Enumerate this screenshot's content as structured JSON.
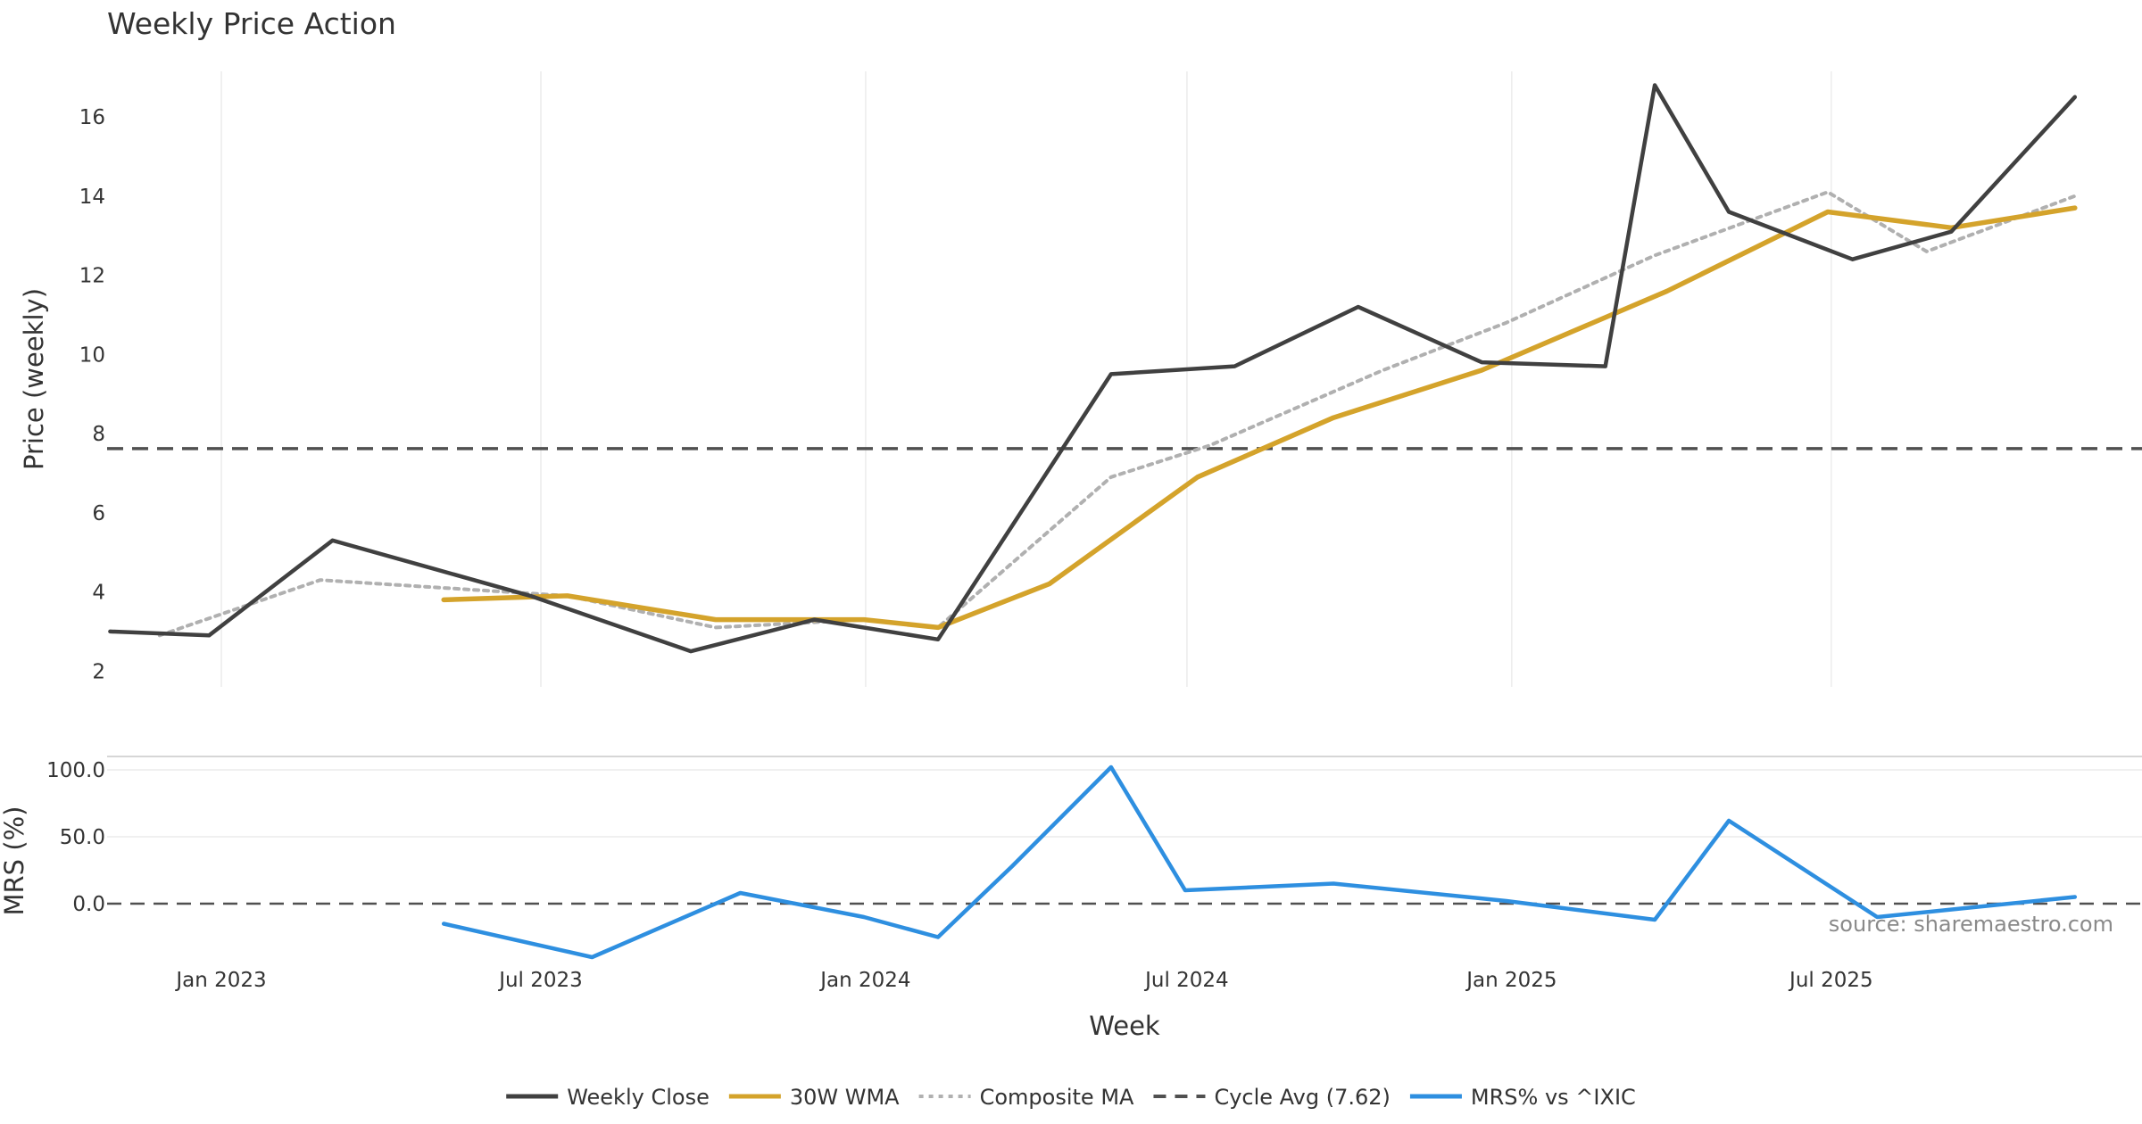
{
  "chart_data": {
    "type": "line",
    "title": "Weekly Price Action",
    "xlabel": "Week",
    "source": "source: sharemaestro.com",
    "x_ticks": [
      "Jan 2023",
      "Jul 2023",
      "Jan 2024",
      "Jul 2024",
      "Jan 2025",
      "Jul 2025"
    ],
    "price_panel": {
      "ylabel": "Price (weekly)",
      "ylim": [
        1.6,
        17.6
      ],
      "yticks": [
        "2",
        "4",
        "6",
        "8",
        "10",
        "12",
        "14",
        "16"
      ],
      "grid": true,
      "cycle_avg": 7.62
    },
    "mrs_panel": {
      "ylabel": "MRS (%)",
      "ylim": [
        -40,
        110
      ],
      "yticks": [
        "0.0",
        "50.0",
        "100.0"
      ],
      "zero_line": 0
    },
    "legend": {
      "position": "bottom-center",
      "entries": [
        {
          "label": "Weekly Close",
          "color": "#404040",
          "style": "solid"
        },
        {
          "label": "30W WMA",
          "color": "#d4a32b",
          "style": "solid"
        },
        {
          "label": "Composite MA",
          "color": "#b0b0b0",
          "style": "dotted"
        },
        {
          "label": "Cycle Avg (7.62)",
          "color": "#505050",
          "style": "dashed"
        },
        {
          "label": "MRS% vs ^IXIC",
          "color": "#2e8fe0",
          "style": "solid"
        }
      ]
    },
    "series": [
      {
        "name": "Weekly Close",
        "color": "#404040",
        "x": [
          "2022-10-30",
          "2022-12-25",
          "2023-03-05",
          "2023-06-25",
          "2023-09-24",
          "2023-12-03",
          "2024-02-11",
          "2024-05-19",
          "2024-07-28",
          "2024-10-06",
          "2024-12-15",
          "2025-02-23",
          "2025-03-23",
          "2025-05-04",
          "2025-07-13",
          "2025-09-07",
          "2025-11-16"
        ],
        "y": [
          3.0,
          2.9,
          5.3,
          3.9,
          2.5,
          3.3,
          2.8,
          9.5,
          9.7,
          11.2,
          9.8,
          9.7,
          16.8,
          13.6,
          12.4,
          13.1,
          16.5
        ]
      },
      {
        "name": "30W WMA",
        "color": "#d4a32b",
        "x": [
          "2023-05-07",
          "2023-07-16",
          "2023-10-08",
          "2023-12-31",
          "2024-02-11",
          "2024-04-14",
          "2024-07-07",
          "2024-09-22",
          "2024-12-15",
          "2025-03-30",
          "2025-06-29",
          "2025-09-07",
          "2025-11-16"
        ],
        "y": [
          3.8,
          3.9,
          3.3,
          3.3,
          3.1,
          4.2,
          6.9,
          8.4,
          9.6,
          11.6,
          13.6,
          13.2,
          13.7
        ]
      },
      {
        "name": "Composite MA",
        "color": "#b0b0b0",
        "x": [
          "2022-11-27",
          "2023-02-26",
          "2023-07-16",
          "2023-10-08",
          "2023-12-31",
          "2024-02-11",
          "2024-05-19",
          "2024-07-14",
          "2024-10-20",
          "2024-12-29",
          "2025-03-23",
          "2025-06-29",
          "2025-08-24",
          "2025-11-16"
        ],
        "y": [
          2.9,
          4.3,
          3.9,
          3.1,
          3.3,
          3.1,
          6.9,
          7.7,
          9.6,
          10.8,
          12.5,
          14.1,
          12.6,
          14.0
        ]
      },
      {
        "name": "MRS% vs ^IXIC",
        "color": "#2e8fe0",
        "x": [
          "2023-05-07",
          "2023-07-30",
          "2023-10-22",
          "2023-12-31",
          "2024-02-11",
          "2024-03-24",
          "2024-05-19",
          "2024-06-30",
          "2024-09-22",
          "2024-12-29",
          "2025-03-23",
          "2025-05-04",
          "2025-07-27",
          "2025-11-16"
        ],
        "y": [
          -15,
          -40,
          8,
          -10,
          -25,
          28,
          102,
          10,
          15,
          2,
          -12,
          62,
          -10,
          5
        ]
      }
    ]
  }
}
